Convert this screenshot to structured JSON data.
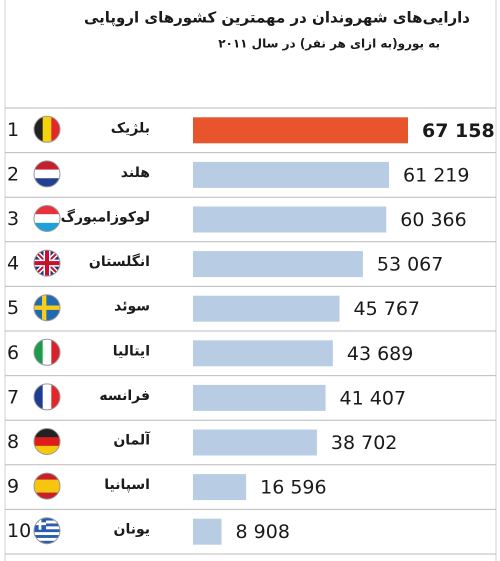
{
  "chart_data": {
    "type": "bar",
    "orientation": "horizontal",
    "title": "دارایی‌های شهروندان در مهمترین کشورهای اروپایی",
    "subtitle": "به یورو(به ازای هر نفر) در سال ۲۰۱۱",
    "ranks": [
      "1",
      "2",
      "3",
      "4",
      "5",
      "6",
      "7",
      "8",
      "9",
      "10"
    ],
    "categories": [
      "بلژیک",
      "هلند",
      "لوکوزامبورگ",
      "انگلستان",
      "سوئد",
      "ایتالیا",
      "فرانسه",
      "آلمان",
      "اسپانیا",
      "یونان"
    ],
    "values": [
      67158,
      61219,
      60366,
      53067,
      45767,
      43689,
      41407,
      38702,
      16596,
      8908
    ],
    "value_labels": [
      "67 158",
      "61 219",
      "60 366",
      "53 067",
      "45 767",
      "43 689",
      "41 407",
      "38 702",
      "16 596",
      "8 908"
    ],
    "colors": [
      "#e8542c",
      "#b8cce4",
      "#b8cce4",
      "#b8cce4",
      "#b8cce4",
      "#b8cce4",
      "#b8cce4",
      "#b8cce4",
      "#b8cce4",
      "#b8cce4"
    ]
  }
}
